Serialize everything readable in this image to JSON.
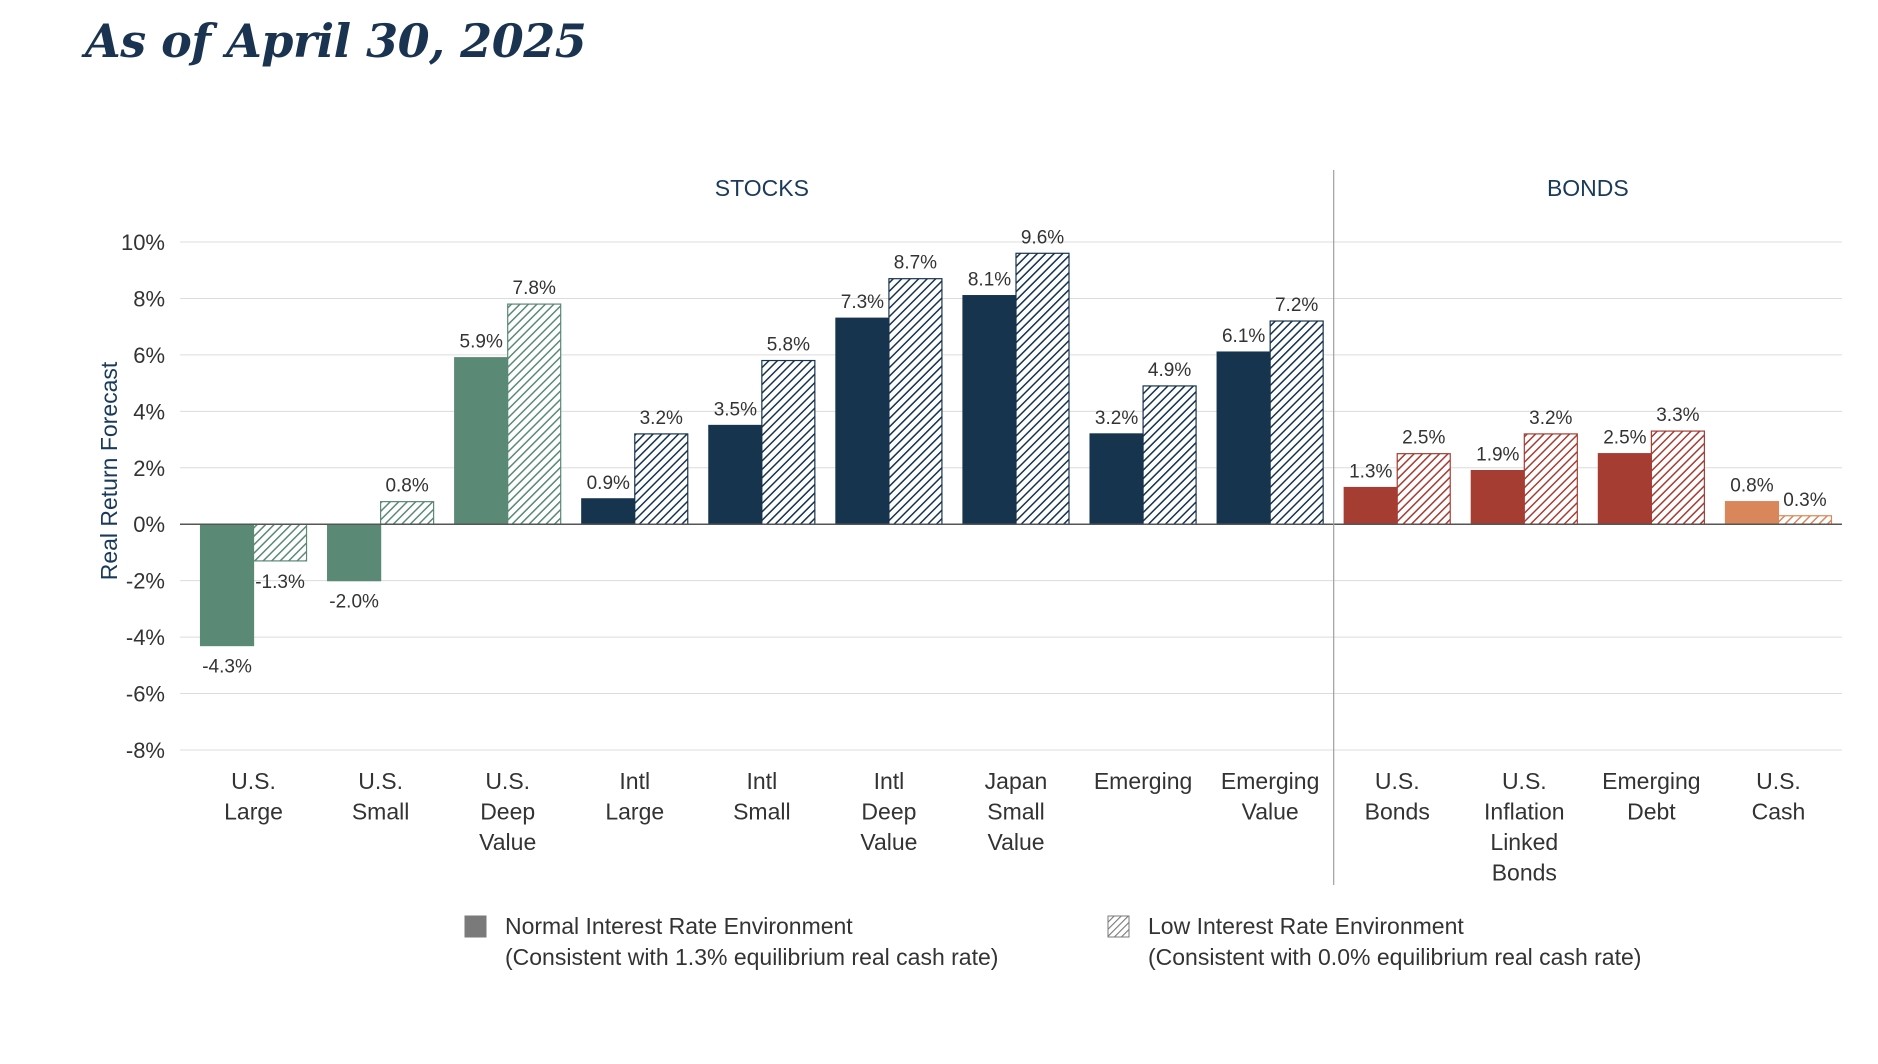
{
  "page": {
    "title": "As of April 30, 2025"
  },
  "chart_data": {
    "type": "bar",
    "ylabel": "Real Return Forecast",
    "ylim": [
      -8,
      10
    ],
    "yticks": [
      "10%",
      "8%",
      "6%",
      "4%",
      "2%",
      "0%",
      "-2%",
      "-4%",
      "-6%",
      "-8%"
    ],
    "grid": true,
    "groups": [
      {
        "label": "STOCKS",
        "category_count": 9
      },
      {
        "label": "BONDS",
        "category_count": 4
      }
    ],
    "categories": [
      {
        "lines": [
          "U.S.",
          "Large"
        ],
        "color": "#5a8a75"
      },
      {
        "lines": [
          "U.S.",
          "Small"
        ],
        "color": "#5a8a75"
      },
      {
        "lines": [
          "U.S.",
          "Deep",
          "Value"
        ],
        "color": "#5a8a75"
      },
      {
        "lines": [
          "Intl",
          "Large"
        ],
        "color": "#17344f"
      },
      {
        "lines": [
          "Intl",
          "Small"
        ],
        "color": "#17344f"
      },
      {
        "lines": [
          "Intl",
          "Deep",
          "Value"
        ],
        "color": "#17344f"
      },
      {
        "lines": [
          "Japan",
          "Small",
          "Value"
        ],
        "color": "#17344f"
      },
      {
        "lines": [
          "Emerging"
        ],
        "color": "#17344f"
      },
      {
        "lines": [
          "Emerging",
          "Value"
        ],
        "color": "#17344f"
      },
      {
        "lines": [
          "U.S.",
          "Bonds"
        ],
        "color": "#a63d33"
      },
      {
        "lines": [
          "U.S.",
          "Inflation",
          "Linked",
          "Bonds"
        ],
        "color": "#a63d33"
      },
      {
        "lines": [
          "Emerging",
          "Debt"
        ],
        "color": "#a63d33"
      },
      {
        "lines": [
          "U.S.",
          "Cash"
        ],
        "color": "#d9875a"
      }
    ],
    "series": [
      {
        "name": "Normal Interest Rate Environment",
        "note": "(Consistent with 1.3% equilibrium real cash rate)",
        "pattern": "solid",
        "values": [
          -4.3,
          -2.0,
          5.9,
          0.9,
          3.5,
          7.3,
          8.1,
          3.2,
          6.1,
          1.3,
          1.9,
          2.5,
          0.8
        ],
        "labels": [
          "-4.3%",
          "-2.0%",
          "5.9%",
          "0.9%",
          "3.5%",
          "7.3%",
          "8.1%",
          "3.2%",
          "6.1%",
          "1.3%",
          "1.9%",
          "2.5%",
          "0.8%"
        ]
      },
      {
        "name": "Low Interest Rate Environment",
        "note": "(Consistent with 0.0% equilibrium real cash rate)",
        "pattern": "hatched",
        "values": [
          -1.3,
          0.8,
          7.8,
          3.2,
          5.8,
          8.7,
          9.6,
          4.9,
          7.2,
          2.5,
          3.2,
          3.3,
          0.3
        ],
        "labels": [
          "-1.3%",
          "0.8%",
          "7.8%",
          "3.2%",
          "5.8%",
          "8.7%",
          "9.6%",
          "4.9%",
          "7.2%",
          "2.5%",
          "3.2%",
          "3.3%",
          "0.3%"
        ]
      }
    ],
    "colors": {
      "axis_text": "#333333",
      "group_label": "#1a3a5a",
      "grid": "#dcdcdc",
      "ylabel": "#1a3a5a",
      "legend_swatch": "#7a7a7a"
    }
  }
}
